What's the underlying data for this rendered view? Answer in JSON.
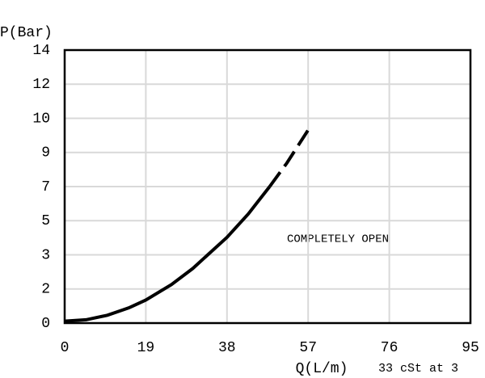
{
  "chart_data": {
    "type": "line",
    "y_label": "P(Bar)",
    "x_label": "Q(L/m)",
    "note": "33 cSt at 3",
    "annotation": "COMPLETELY OPEN",
    "series": [
      {
        "x": [
          0,
          5,
          10,
          15,
          19,
          25,
          30,
          38,
          43,
          48
        ],
        "values": [
          0.1,
          0.17,
          0.4,
          0.78,
          1.18,
          1.97,
          2.8,
          4.4,
          5.6,
          7.0
        ],
        "color": "#000000",
        "dashed": false
      },
      {
        "x": [
          48,
          52,
          57
        ],
        "values": [
          7.0,
          8.2,
          9.9
        ],
        "color": "#000000",
        "dashed": true
      }
    ],
    "xlim": [
      0,
      95
    ],
    "xticks": [
      0,
      19,
      38,
      57,
      76,
      95
    ],
    "ylim": [
      0,
      14
    ],
    "yticks": [
      0,
      {
        "value": 1.75,
        "label": "2"
      },
      {
        "value": 3.5,
        "label": "3"
      },
      {
        "value": 5.25,
        "label": "5"
      },
      7,
      {
        "value": 8.75,
        "label": "9"
      },
      {
        "value": 10.5,
        "label": "10"
      },
      {
        "value": 12.25,
        "label": "12"
      },
      14
    ],
    "grid": true
  }
}
